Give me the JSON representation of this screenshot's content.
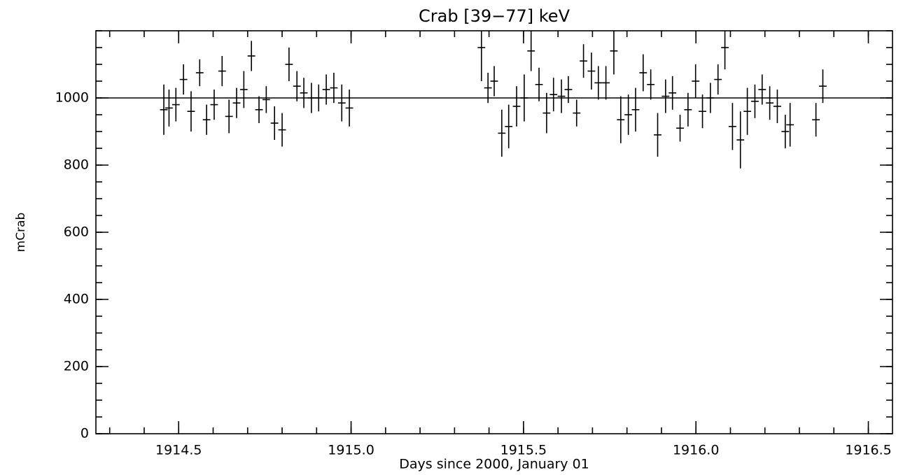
{
  "chart_data": {
    "type": "scatter",
    "title": "Crab [39−77] keV",
    "xlabel": "Days since 2000, January 01",
    "ylabel": "mCrab",
    "color": "#000000",
    "x": [
      1914.457,
      1914.472,
      1914.492,
      1914.514,
      1914.536,
      1914.561,
      1914.581,
      1914.603,
      1914.626,
      1914.646,
      1914.668,
      1914.689,
      1914.711,
      1914.733,
      1914.754,
      1914.778,
      1914.8,
      1914.82,
      1914.843,
      1914.863,
      1914.885,
      1914.906,
      1914.928,
      1914.95,
      1914.973,
      1914.995,
      1915.378,
      1915.397,
      1915.415,
      1915.437,
      1915.457,
      1915.48,
      1915.502,
      1915.522,
      1915.545,
      1915.567,
      1915.587,
      1915.61,
      1915.63,
      1915.654,
      1915.674,
      1915.697,
      1915.717,
      1915.739,
      1915.762,
      1915.782,
      1915.804,
      1915.825,
      1915.847,
      1915.869,
      1915.889,
      1915.912,
      1915.932,
      1915.954,
      1915.977,
      1915.999,
      1916.019,
      1916.042,
      1916.064,
      1916.084,
      1916.106,
      1916.129,
      1916.149,
      1916.171,
      1916.192,
      1916.214,
      1916.236,
      1916.259,
      1916.273,
      1916.348,
      1916.368
    ],
    "values": [
      965,
      970,
      980,
      1055,
      960,
      1075,
      935,
      980,
      1080,
      945,
      985,
      1025,
      1125,
      965,
      995,
      925,
      905,
      1100,
      1035,
      1015,
      1000,
      1000,
      1025,
      1030,
      985,
      970,
      1150,
      1030,
      1050,
      895,
      915,
      975,
      1000,
      1140,
      1040,
      955,
      1010,
      1005,
      1025,
      955,
      1110,
      1080,
      1045,
      1045,
      1140,
      935,
      950,
      965,
      1075,
      1040,
      890,
      1005,
      1015,
      910,
      965,
      1050,
      960,
      1000,
      1055,
      1150,
      915,
      875,
      960,
      990,
      1025,
      985,
      975,
      900,
      920,
      935,
      1035
    ],
    "errors": [
      75,
      55,
      50,
      45,
      60,
      40,
      45,
      45,
      45,
      50,
      45,
      55,
      45,
      40,
      40,
      50,
      50,
      50,
      45,
      45,
      45,
      40,
      45,
      45,
      55,
      55,
      100,
      45,
      45,
      70,
      65,
      60,
      70,
      60,
      50,
      60,
      50,
      50,
      40,
      40,
      50,
      55,
      50,
      50,
      70,
      70,
      60,
      65,
      55,
      45,
      65,
      50,
      50,
      40,
      50,
      50,
      50,
      45,
      45,
      65,
      70,
      85,
      70,
      50,
      45,
      50,
      50,
      50,
      65,
      50,
      50
    ],
    "xerr": 0.011,
    "reference_line": 1000,
    "xlim": [
      1914.26,
      1916.57
    ],
    "ylim": [
      0,
      1200
    ],
    "xticks": [
      1914.5,
      {
        "value": 1915,
        "label": "1915.0"
      },
      1915.5,
      {
        "value": 1916,
        "label": "1916.0"
      },
      1916.5
    ],
    "yticks": [
      0,
      200,
      400,
      600,
      800,
      1000
    ],
    "xminor": 5,
    "yminor": 4
  }
}
